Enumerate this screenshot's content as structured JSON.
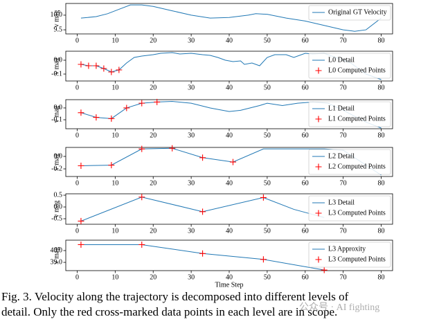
{
  "chart_data": [
    {
      "type": "line",
      "ylabel": "v mag",
      "xlim": [
        -3,
        83
      ],
      "xticks": [
        0,
        10,
        20,
        30,
        40,
        50,
        60,
        70,
        80
      ],
      "ylim": [
        9.36,
        10.4
      ],
      "yticks": [
        9.5,
        {
          "value": 10,
          "label": "10.0"
        }
      ],
      "legend": "upper right",
      "series": [
        {
          "name": "Original GT Velocity",
          "color": "#1f77b4",
          "x": [
            1,
            5,
            8,
            11,
            14,
            17,
            20,
            25,
            30,
            35,
            40,
            45,
            47,
            50,
            55,
            60,
            65,
            70,
            73,
            76,
            80
          ],
          "values": [
            9.9,
            9.95,
            10.05,
            10.2,
            10.35,
            10.35,
            10.3,
            10.15,
            10.0,
            9.9,
            9.92,
            10.0,
            10.05,
            10.03,
            9.9,
            9.8,
            9.65,
            9.5,
            9.45,
            9.5,
            9.9
          ]
        }
      ]
    },
    {
      "type": "line",
      "ylabel": "v mag",
      "xlim": [
        -3,
        83
      ],
      "xticks": [
        0,
        10,
        20,
        30,
        40,
        50,
        60,
        70,
        80
      ],
      "ylim": [
        -0.15,
        0.065
      ],
      "yticks": [
        -0.1,
        {
          "value": 0,
          "label": "0.0"
        }
      ],
      "legend": "upper right",
      "series": [
        {
          "name": "L0 Detail",
          "color": "#1f77b4",
          "x": [
            1,
            3,
            5,
            7,
            9,
            11,
            13,
            15,
            17,
            20,
            22,
            25,
            27,
            30,
            33,
            35,
            37,
            39,
            41,
            43,
            44,
            46,
            48,
            50,
            52,
            55,
            57,
            60,
            62,
            65,
            68,
            72,
            76,
            80
          ],
          "values": [
            -0.03,
            -0.04,
            -0.04,
            -0.06,
            -0.085,
            -0.07,
            -0.02,
            0.02,
            0.03,
            0.04,
            0.05,
            0.055,
            0.045,
            0.05,
            0.04,
            0.035,
            0.02,
            0.0,
            -0.01,
            -0.005,
            -0.03,
            -0.02,
            -0.04,
            0.02,
            0.04,
            0.04,
            0.02,
            0.05,
            0.045,
            0.05,
            0.02,
            -0.02,
            -0.1,
            -0.14
          ]
        },
        {
          "name": "L0 Computed Points",
          "color": "#ff0000",
          "marker": "+",
          "x": [
            1,
            3,
            5,
            7,
            9,
            11
          ],
          "values": [
            -0.03,
            -0.04,
            -0.04,
            -0.06,
            -0.085,
            -0.07
          ]
        }
      ]
    },
    {
      "type": "line",
      "ylabel": "v mag",
      "xlim": [
        -3,
        83
      ],
      "xticks": [
        0,
        10,
        20,
        30,
        40,
        50,
        60,
        70,
        80
      ],
      "ylim": [
        -0.176,
        0.07
      ],
      "yticks": [
        -0.1,
        {
          "value": 0,
          "label": "0.0"
        }
      ],
      "legend": "upper right",
      "series": [
        {
          "name": "L1 Detail",
          "color": "#1f77b4",
          "x": [
            1,
            5,
            9,
            13,
            17,
            21,
            25,
            30,
            35,
            40,
            43,
            48,
            50,
            54,
            58,
            62,
            66,
            70,
            76,
            80
          ],
          "values": [
            -0.04,
            -0.08,
            -0.09,
            0.0,
            0.04,
            0.05,
            0.055,
            0.04,
            0.0,
            -0.03,
            -0.02,
            0.02,
            0.04,
            0.02,
            0.04,
            0.05,
            0.04,
            -0.02,
            -0.12,
            -0.17
          ]
        },
        {
          "name": "L1 Computed Points",
          "color": "#ff0000",
          "marker": "+",
          "x": [
            1,
            5,
            9,
            13,
            17,
            21
          ],
          "values": [
            -0.04,
            -0.08,
            -0.09,
            0.0,
            0.04,
            0.05
          ]
        }
      ]
    },
    {
      "type": "line",
      "ylabel": "v mag",
      "xlim": [
        -3,
        83
      ],
      "xticks": [
        0,
        10,
        20,
        30,
        40,
        50,
        60,
        70,
        80
      ],
      "ylim": [
        -0.322,
        0.144
      ],
      "yticks": [
        -0.2,
        {
          "value": 0,
          "label": "0.0"
        }
      ],
      "legend": "upper right",
      "series": [
        {
          "name": "L2 Detail",
          "color": "#1f77b4",
          "x": [
            1,
            9,
            17,
            25,
            33,
            41,
            49,
            57,
            65,
            70,
            80
          ],
          "values": [
            -0.15,
            -0.14,
            0.12,
            0.13,
            -0.02,
            -0.09,
            0.12,
            0.12,
            0.12,
            0.1,
            -0.3
          ]
        },
        {
          "name": "L2 Computed Points",
          "color": "#ff0000",
          "marker": "+",
          "x": [
            1,
            9,
            17,
            25,
            33,
            41
          ],
          "values": [
            -0.15,
            -0.14,
            0.12,
            0.13,
            -0.02,
            -0.09
          ]
        }
      ]
    },
    {
      "type": "line",
      "ylabel": "v mag",
      "xlim": [
        -3,
        83
      ],
      "xticks": [
        0,
        10,
        20,
        30,
        40,
        50,
        60,
        70,
        80
      ],
      "ylim": [
        -0.735,
        0.56
      ],
      "yticks": [
        -0.5,
        {
          "value": 0,
          "label": "0.0"
        },
        0.5
      ],
      "legend": "upper right",
      "series": [
        {
          "name": "L3 Detail",
          "color": "#1f77b4",
          "x": [
            1,
            17,
            33,
            49,
            57,
            65
          ],
          "values": [
            -0.6,
            0.42,
            -0.2,
            0.4,
            -0.1,
            -0.45
          ]
        },
        {
          "name": "L3 Computed Points",
          "color": "#ff0000",
          "marker": "+",
          "x": [
            1,
            17,
            33,
            49
          ],
          "values": [
            -0.6,
            0.42,
            -0.2,
            0.4
          ]
        }
      ]
    },
    {
      "type": "line",
      "ylabel": "v mag",
      "xlabel": "Time Step",
      "xlim": [
        -3,
        83
      ],
      "xticks": [
        0,
        10,
        20,
        30,
        40,
        50,
        60,
        70,
        80
      ],
      "ylim": [
        38.3,
        40.88
      ],
      "yticks": [
        {
          "value": 39,
          "label": "39.0"
        },
        {
          "value": 40,
          "label": "40.0"
        }
      ],
      "legend": "upper right",
      "series": [
        {
          "name": "L3 Approxity",
          "color": "#1f77b4",
          "x": [
            1,
            17,
            33,
            49,
            65
          ],
          "values": [
            40.5,
            40.5,
            39.75,
            39.25,
            38.35
          ]
        },
        {
          "name": "L3 Computed Points",
          "color": "#ff0000",
          "marker": "+",
          "x": [
            1,
            17,
            33,
            49,
            65
          ],
          "values": [
            40.5,
            40.5,
            39.75,
            39.25,
            38.35
          ]
        }
      ]
    }
  ],
  "caption": [
    "Fig. 3.   Velocity along the trajectory is decomposed into different levels of",
    "detail. Only the red cross-marked data points in each level are in scope."
  ],
  "watermark": "公众号 · AI fighting"
}
